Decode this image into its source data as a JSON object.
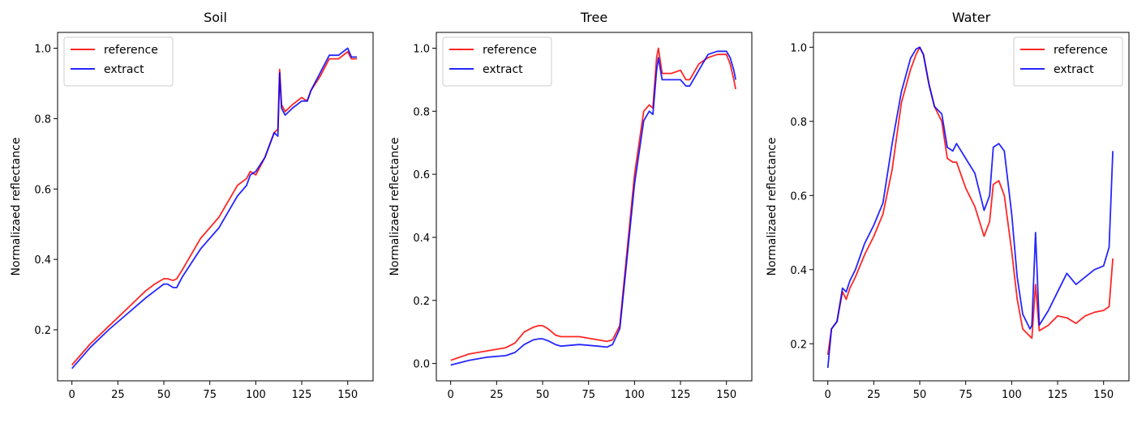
{
  "chart_data": [
    {
      "type": "line",
      "title": "Soil",
      "xlabel": "",
      "ylabel": "Normalizaed reflectance",
      "xlim": [
        -7.8,
        163.8
      ],
      "ylim": [
        0.055,
        1.045
      ],
      "xticks": [
        0,
        25,
        50,
        75,
        100,
        125,
        150
      ],
      "yticks": [
        0.2,
        0.4,
        0.6,
        0.8,
        1.0
      ],
      "ytick_labels": [
        "0.2",
        "0.4",
        "0.6",
        "0.8",
        "1.0"
      ],
      "legend": "upper-left",
      "grid": false,
      "series": [
        {
          "name": "reference",
          "color": "#ff0000",
          "x": [
            0,
            5,
            10,
            20,
            30,
            40,
            45,
            50,
            52,
            55,
            57,
            60,
            70,
            80,
            90,
            95,
            97,
            100,
            105,
            110,
            112,
            113,
            114,
            116,
            120,
            125,
            128,
            130,
            135,
            140,
            145,
            150,
            152,
            155
          ],
          "y": [
            0.1,
            0.13,
            0.16,
            0.21,
            0.26,
            0.31,
            0.33,
            0.345,
            0.345,
            0.34,
            0.345,
            0.37,
            0.46,
            0.52,
            0.61,
            0.63,
            0.65,
            0.64,
            0.69,
            0.76,
            0.77,
            0.94,
            0.84,
            0.82,
            0.84,
            0.86,
            0.85,
            0.88,
            0.92,
            0.97,
            0.97,
            0.99,
            0.97,
            0.97
          ]
        },
        {
          "name": "extract",
          "color": "#0000ff",
          "x": [
            0,
            5,
            10,
            20,
            30,
            40,
            45,
            50,
            52,
            55,
            57,
            60,
            70,
            80,
            90,
            95,
            97,
            100,
            105,
            110,
            112,
            113,
            114,
            116,
            120,
            125,
            128,
            130,
            135,
            140,
            145,
            150,
            152,
            155
          ],
          "y": [
            0.09,
            0.12,
            0.15,
            0.2,
            0.245,
            0.29,
            0.31,
            0.33,
            0.33,
            0.32,
            0.32,
            0.35,
            0.43,
            0.49,
            0.58,
            0.61,
            0.64,
            0.65,
            0.69,
            0.76,
            0.75,
            0.93,
            0.83,
            0.81,
            0.83,
            0.85,
            0.85,
            0.88,
            0.93,
            0.98,
            0.98,
            1.0,
            0.975,
            0.975
          ]
        }
      ]
    },
    {
      "type": "line",
      "title": "Tree",
      "xlabel": "",
      "ylabel": "Normalizaed reflectance",
      "xlim": [
        -7.8,
        163.8
      ],
      "ylim": [
        -0.055,
        1.05
      ],
      "xticks": [
        0,
        25,
        50,
        75,
        100,
        125,
        150
      ],
      "yticks": [
        0.0,
        0.2,
        0.4,
        0.6,
        0.8,
        1.0
      ],
      "ytick_labels": [
        "0.0",
        "0.2",
        "0.4",
        "0.6",
        "0.8",
        "1.0"
      ],
      "legend": "upper-left",
      "grid": false,
      "series": [
        {
          "name": "reference",
          "color": "#ff0000",
          "x": [
            0,
            10,
            20,
            30,
            35,
            40,
            45,
            48,
            50,
            53,
            57,
            60,
            70,
            80,
            85,
            88,
            92,
            95,
            100,
            105,
            108,
            110,
            112,
            113,
            115,
            120,
            125,
            128,
            130,
            135,
            140,
            145,
            150,
            152,
            154,
            155
          ],
          "y": [
            0.01,
            0.03,
            0.04,
            0.05,
            0.065,
            0.1,
            0.115,
            0.12,
            0.12,
            0.11,
            0.09,
            0.085,
            0.085,
            0.075,
            0.07,
            0.075,
            0.12,
            0.3,
            0.6,
            0.8,
            0.82,
            0.81,
            0.97,
            1.0,
            0.92,
            0.92,
            0.93,
            0.9,
            0.9,
            0.95,
            0.97,
            0.98,
            0.98,
            0.95,
            0.9,
            0.87
          ]
        },
        {
          "name": "extract",
          "color": "#0000ff",
          "x": [
            0,
            10,
            20,
            30,
            35,
            40,
            45,
            48,
            50,
            53,
            57,
            60,
            70,
            80,
            85,
            88,
            92,
            95,
            100,
            105,
            108,
            110,
            112,
            113,
            115,
            120,
            125,
            128,
            130,
            135,
            140,
            145,
            150,
            152,
            154,
            155
          ],
          "y": [
            -0.005,
            0.01,
            0.02,
            0.025,
            0.035,
            0.06,
            0.075,
            0.078,
            0.078,
            0.072,
            0.06,
            0.055,
            0.06,
            0.055,
            0.052,
            0.06,
            0.11,
            0.28,
            0.57,
            0.77,
            0.8,
            0.79,
            0.93,
            0.97,
            0.9,
            0.9,
            0.9,
            0.88,
            0.88,
            0.93,
            0.98,
            0.99,
            0.99,
            0.97,
            0.93,
            0.9
          ]
        }
      ]
    },
    {
      "type": "line",
      "title": "Water",
      "xlabel": "",
      "ylabel": "Normalizaed reflectance",
      "xlim": [
        -7.8,
        163.8
      ],
      "ylim": [
        0.1,
        1.04
      ],
      "xticks": [
        0,
        25,
        50,
        75,
        100,
        125,
        150
      ],
      "yticks": [
        0.2,
        0.4,
        0.6,
        0.8,
        1.0
      ],
      "ytick_labels": [
        "0.2",
        "0.4",
        "0.6",
        "0.8",
        "1.0"
      ],
      "legend": "upper-right",
      "grid": false,
      "series": [
        {
          "name": "reference",
          "color": "#ff0000",
          "x": [
            0,
            2,
            5,
            8,
            10,
            12,
            15,
            20,
            25,
            30,
            35,
            40,
            45,
            48,
            50,
            52,
            55,
            58,
            62,
            65,
            68,
            70,
            75,
            80,
            85,
            88,
            90,
            93,
            96,
            100,
            103,
            106,
            110,
            111,
            113,
            115,
            120,
            125,
            130,
            135,
            140,
            145,
            150,
            153,
            155
          ],
          "y": [
            0.17,
            0.24,
            0.26,
            0.34,
            0.32,
            0.35,
            0.38,
            0.44,
            0.49,
            0.55,
            0.67,
            0.85,
            0.94,
            0.98,
            1.0,
            0.98,
            0.9,
            0.84,
            0.8,
            0.7,
            0.69,
            0.69,
            0.62,
            0.57,
            0.49,
            0.53,
            0.63,
            0.64,
            0.6,
            0.45,
            0.32,
            0.24,
            0.22,
            0.215,
            0.36,
            0.235,
            0.25,
            0.275,
            0.27,
            0.255,
            0.275,
            0.285,
            0.29,
            0.3,
            0.43
          ]
        },
        {
          "name": "extract",
          "color": "#0000ff",
          "x": [
            0,
            2,
            5,
            8,
            10,
            12,
            15,
            20,
            25,
            30,
            35,
            40,
            45,
            48,
            50,
            52,
            55,
            58,
            62,
            65,
            68,
            70,
            75,
            80,
            85,
            88,
            90,
            93,
            96,
            100,
            103,
            106,
            110,
            111,
            113,
            115,
            120,
            125,
            130,
            135,
            140,
            145,
            150,
            153,
            155
          ],
          "y": [
            0.135,
            0.24,
            0.26,
            0.35,
            0.34,
            0.37,
            0.4,
            0.47,
            0.52,
            0.58,
            0.74,
            0.88,
            0.97,
            0.995,
            1.0,
            0.98,
            0.9,
            0.84,
            0.82,
            0.73,
            0.72,
            0.74,
            0.7,
            0.66,
            0.56,
            0.6,
            0.73,
            0.74,
            0.72,
            0.55,
            0.38,
            0.28,
            0.24,
            0.25,
            0.5,
            0.25,
            0.29,
            0.34,
            0.39,
            0.36,
            0.38,
            0.4,
            0.41,
            0.46,
            0.72
          ]
        }
      ]
    }
  ]
}
